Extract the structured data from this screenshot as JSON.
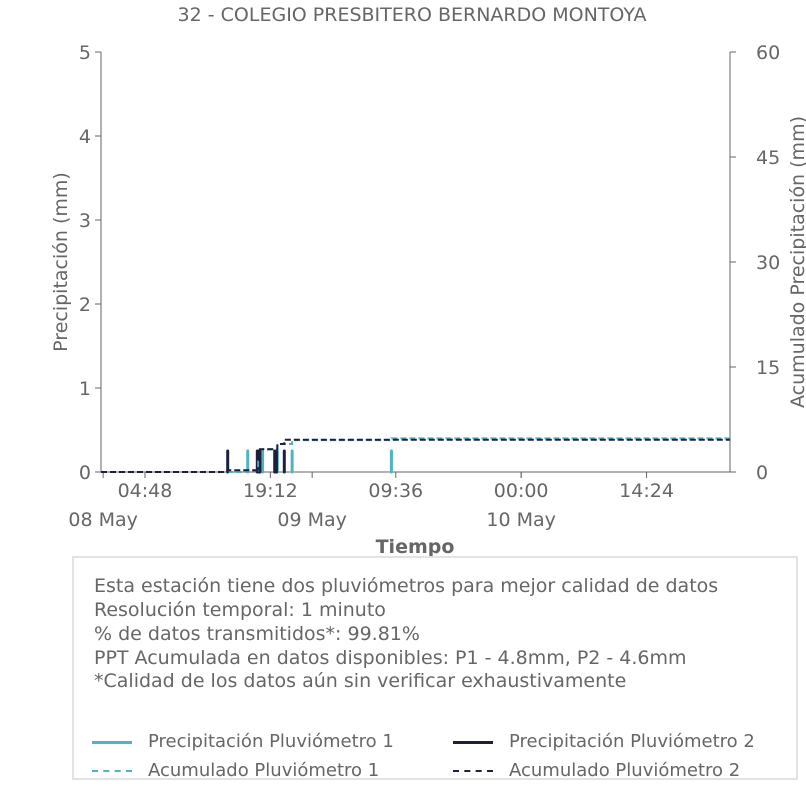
{
  "chart_data": {
    "type": "bar+line",
    "title": "32 - COLEGIO PRESBITERO BERNARDO MONTOYA",
    "xlabel": "Tiempo",
    "ylabel_left": "Precipitación (mm)",
    "ylabel_right": "Acumulado Precipitación (mm)",
    "ylim_left": [
      0,
      5
    ],
    "ylim_right": [
      0,
      60
    ],
    "yticks_left": [
      "0",
      "1",
      "2",
      "3",
      "4",
      "5"
    ],
    "yticks_right": [
      "0",
      "15",
      "30",
      "45",
      "60"
    ],
    "xlim": [
      "2024-05-07 23:45",
      "2024-05-10 23:59"
    ],
    "xticks": [
      {
        "t": "2024-05-08 04:48",
        "time": "04:48",
        "date": "08 May"
      },
      {
        "t": "2024-05-08 19:12",
        "time": "19:12",
        "date": ""
      },
      {
        "t": "2024-05-09 09:36",
        "time": "09:36",
        "date": ""
      },
      {
        "t": "2024-05-10 00:00",
        "time": "00:00",
        "date": ""
      },
      {
        "t": "2024-05-10 14:24",
        "time": "14:24",
        "date": ""
      }
    ],
    "date_labels": [
      {
        "t": "2024-05-08 00:00",
        "label": "08 May"
      },
      {
        "t": "2024-05-09 00:00",
        "label": "09 May"
      },
      {
        "t": "2024-05-10 00:00",
        "label": "10 May"
      }
    ],
    "series": [
      {
        "name": "Precipitación Pluviómetro 1",
        "kind": "bar",
        "color": "#4fb3c0",
        "points": [
          [
            "2024-05-08 16:36",
            0.25
          ],
          [
            "2024-05-08 17:48",
            0.25
          ],
          [
            "2024-05-08 18:18",
            0.25
          ],
          [
            "2024-05-08 19:54",
            0.25
          ],
          [
            "2024-05-08 20:00",
            0.25
          ],
          [
            "2024-05-08 21:42",
            0.25
          ],
          [
            "2024-05-09 09:06",
            0.25
          ]
        ]
      },
      {
        "name": "Precipitación Pluviómetro 2",
        "kind": "bar",
        "color": "#1c1f3e",
        "points": [
          [
            "2024-05-08 14:18",
            0.25
          ],
          [
            "2024-05-08 17:42",
            0.25
          ],
          [
            "2024-05-08 17:54",
            0.25
          ],
          [
            "2024-05-08 18:00",
            0.25
          ],
          [
            "2024-05-08 19:42",
            0.25
          ],
          [
            "2024-05-08 19:48",
            0.25
          ],
          [
            "2024-05-08 19:54",
            0.25
          ],
          [
            "2024-05-08 20:48",
            0.25
          ]
        ]
      },
      {
        "name": "Acumulado Pluviómetro 1",
        "kind": "cumulative",
        "color": "#4fb3c0",
        "dash": true,
        "points": [
          [
            "2024-05-07 23:45",
            0
          ],
          [
            "2024-05-08 16:36",
            0.25
          ],
          [
            "2024-05-08 17:48",
            1.5
          ],
          [
            "2024-05-08 18:18",
            3.25
          ],
          [
            "2024-05-08 20:00",
            4.0
          ],
          [
            "2024-05-08 21:42",
            4.55
          ],
          [
            "2024-05-09 09:06",
            4.8
          ],
          [
            "2024-05-10 23:59",
            4.8
          ]
        ]
      },
      {
        "name": "Acumulado Pluviómetro 2",
        "kind": "cumulative",
        "color": "#1c1f3e",
        "dash": true,
        "points": [
          [
            "2024-05-07 23:45",
            0
          ],
          [
            "2024-05-08 14:18",
            0.25
          ],
          [
            "2024-05-08 17:42",
            0.5
          ],
          [
            "2024-05-08 18:00",
            3.25
          ],
          [
            "2024-05-08 20:00",
            4.0
          ],
          [
            "2024-05-08 20:48",
            4.6
          ],
          [
            "2024-05-10 23:59",
            4.6
          ]
        ]
      }
    ]
  },
  "info": {
    "lines": [
      "Esta estación tiene dos pluviómetros para mejor calidad de datos",
      "Resolución temporal: 1 minuto",
      "% de datos transmitidos*: 99.81%",
      "PPT Acumulada en datos disponibles: P1 - 4.8mm, P2 - 4.6mm",
      "*Calidad de los datos aún sin verificar exhaustivamente"
    ]
  },
  "legend": {
    "items": [
      {
        "label": "Precipitación Pluviómetro 1",
        "color": "#4fb3c0",
        "style": "solid"
      },
      {
        "label": "Precipitación Pluviómetro 2",
        "color": "#1c1f3e",
        "style": "solid"
      },
      {
        "label": "Acumulado Pluviómetro 1",
        "color": "#4fb3c0",
        "style": "dashed"
      },
      {
        "label": "Acumulado Pluviómetro 2",
        "color": "#1c1f3e",
        "style": "dashed"
      }
    ]
  }
}
